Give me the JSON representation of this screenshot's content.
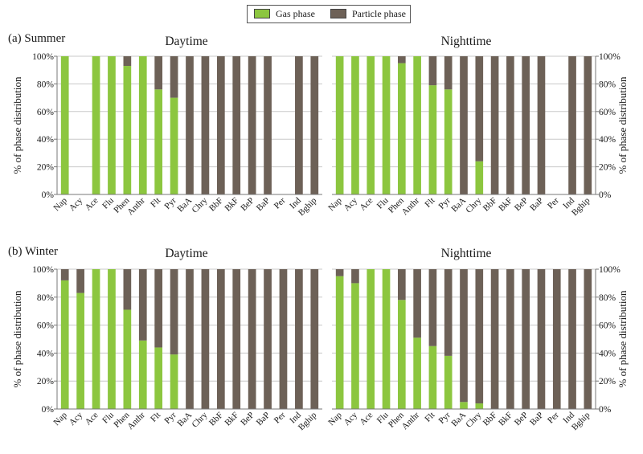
{
  "legend": {
    "gas_label": "Gas phase",
    "particle_label": "Particle phase",
    "gas_color": "#8cc63f",
    "particle_color": "#6d6157"
  },
  "panels": {
    "summer_label": "(a) Summer",
    "winter_label": "(b) Winter"
  },
  "titles": {
    "summer_day": "Daytime",
    "summer_night": "Nighttime",
    "winter_day": "Daytime",
    "winter_night": "Nighttime"
  },
  "chart_data": [
    {
      "type": "bar",
      "stacked": true,
      "title": "Daytime",
      "ylabel": "% of phase distribution",
      "ylim": [
        0,
        100
      ],
      "yticks": [
        "0%",
        "20%",
        "40%",
        "60%",
        "80%",
        "100%"
      ],
      "categories": [
        "Nap",
        "Acy",
        "Ace",
        "Flu",
        "Phen",
        "Anthr",
        "Flt",
        "Pyr",
        "BaA",
        "Chry",
        "BbF",
        "BkF",
        "BeP",
        "BaP",
        "Per",
        "Ind",
        "Bghip"
      ],
      "series": [
        {
          "name": "Gas phase",
          "values": [
            100,
            null,
            100,
            100,
            93,
            100,
            76,
            70,
            0,
            0,
            0,
            0,
            0,
            0,
            null,
            0,
            0
          ]
        },
        {
          "name": "Particle phase",
          "values": [
            0,
            null,
            0,
            0,
            7,
            0,
            24,
            30,
            100,
            100,
            100,
            100,
            100,
            100,
            null,
            100,
            100
          ]
        }
      ],
      "grid": true
    },
    {
      "type": "bar",
      "stacked": true,
      "title": "Nighttime",
      "ylabel": "% of phase distribution",
      "ylim": [
        0,
        100
      ],
      "yticks": [
        "0%",
        "20%",
        "40%",
        "60%",
        "80%",
        "100%"
      ],
      "categories": [
        "Nap",
        "Acy",
        "Ace",
        "Flu",
        "Phen",
        "Anthr",
        "Flt",
        "Pyr",
        "BaA",
        "Chry",
        "BbF",
        "BkF",
        "BeP",
        "BaP",
        "Per",
        "Ind",
        "Bghip"
      ],
      "series": [
        {
          "name": "Gas phase",
          "values": [
            100,
            100,
            100,
            100,
            95,
            100,
            79,
            76,
            0,
            24,
            0,
            0,
            0,
            0,
            null,
            0,
            0
          ]
        },
        {
          "name": "Particle phase",
          "values": [
            0,
            0,
            0,
            0,
            5,
            0,
            21,
            24,
            100,
            76,
            100,
            100,
            100,
            100,
            null,
            100,
            100
          ]
        }
      ],
      "grid": true
    },
    {
      "type": "bar",
      "stacked": true,
      "title": "Daytime",
      "ylabel": "% of phase distribution",
      "ylim": [
        0,
        100
      ],
      "yticks": [
        "0%",
        "20%",
        "40%",
        "60%",
        "80%",
        "100%"
      ],
      "categories": [
        "Nap",
        "Acy",
        "Ace",
        "Flu",
        "Phen",
        "Anthr",
        "Flt",
        "Pyr",
        "BaA",
        "Chry",
        "BbF",
        "BkF",
        "BeP",
        "BaP",
        "Per",
        "Ind",
        "Bghip"
      ],
      "series": [
        {
          "name": "Gas phase",
          "values": [
            92,
            83,
            100,
            100,
            71,
            49,
            44,
            39,
            0,
            0,
            0,
            0,
            0,
            0,
            0,
            0,
            0
          ]
        },
        {
          "name": "Particle phase",
          "values": [
            8,
            17,
            0,
            0,
            29,
            51,
            56,
            61,
            100,
            100,
            100,
            100,
            100,
            100,
            100,
            100,
            100
          ]
        }
      ],
      "grid": true
    },
    {
      "type": "bar",
      "stacked": true,
      "title": "Nighttime",
      "ylabel": "% of phase distribution",
      "ylim": [
        0,
        100
      ],
      "yticks": [
        "0%",
        "20%",
        "40%",
        "60%",
        "80%",
        "100%"
      ],
      "categories": [
        "Nap",
        "Acy",
        "Ace",
        "Flu",
        "Phen",
        "Anthr",
        "Flt",
        "Pyr",
        "BaA",
        "Chry",
        "BbF",
        "BkF",
        "BeP",
        "BaP",
        "Per",
        "Ind",
        "Bghip"
      ],
      "series": [
        {
          "name": "Gas phase",
          "values": [
            95,
            90,
            100,
            100,
            78,
            51,
            45,
            38,
            5,
            4,
            0,
            0,
            0,
            0,
            0,
            0,
            0
          ]
        },
        {
          "name": "Particle phase",
          "values": [
            5,
            10,
            0,
            0,
            22,
            49,
            55,
            62,
            95,
            96,
            100,
            100,
            100,
            100,
            100,
            100,
            100
          ]
        }
      ],
      "grid": true
    }
  ]
}
